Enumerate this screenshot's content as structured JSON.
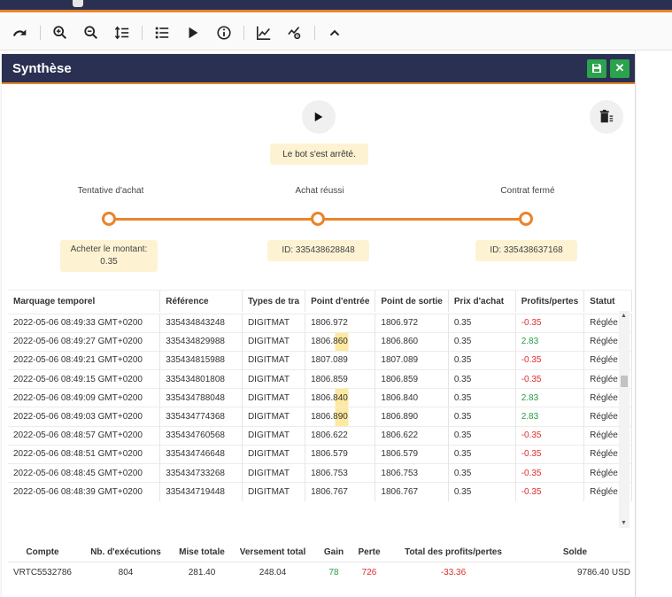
{
  "panel": {
    "title": "Synthèse"
  },
  "status": {
    "message": "Le bot s'est arrêté."
  },
  "steps": [
    {
      "label": "Tentative d'achat",
      "info": "Acheter le montant: 0.35"
    },
    {
      "label": "Achat réussi",
      "info": "ID: 335438628848"
    },
    {
      "label": "Contrat fermé",
      "info": "ID: 335438637168"
    }
  ],
  "table": {
    "headers": [
      "Marquage temporel",
      "Référence",
      "Types de tra",
      "Point d'entrée",
      "Point de sortie",
      "Prix d'achat",
      "Profits/pertes",
      "Statut"
    ],
    "rows": [
      [
        "2022-05-06 08:49:33 GMT+0200",
        "335434843248",
        "DIGITMAT",
        "1806.972",
        "1806.972",
        "0.35",
        "-0.35",
        "Réglée"
      ],
      [
        "2022-05-06 08:49:27 GMT+0200",
        "335434829988",
        "DIGITMAT",
        "1806.860",
        "1806.860",
        "0.35",
        "2.83",
        "Réglée"
      ],
      [
        "2022-05-06 08:49:21 GMT+0200",
        "335434815988",
        "DIGITMAT",
        "1807.089",
        "1807.089",
        "0.35",
        "-0.35",
        "Réglée"
      ],
      [
        "2022-05-06 08:49:15 GMT+0200",
        "335434801808",
        "DIGITMAT",
        "1806.859",
        "1806.859",
        "0.35",
        "-0.35",
        "Réglée"
      ],
      [
        "2022-05-06 08:49:09 GMT+0200",
        "335434788048",
        "DIGITMAT",
        "1806.840",
        "1806.840",
        "0.35",
        "2.83",
        "Réglée"
      ],
      [
        "2022-05-06 08:49:03 GMT+0200",
        "335434774368",
        "DIGITMAT",
        "1806.890",
        "1806.890",
        "0.35",
        "2.83",
        "Réglée"
      ],
      [
        "2022-05-06 08:48:57 GMT+0200",
        "335434760568",
        "DIGITMAT",
        "1806.622",
        "1806.622",
        "0.35",
        "-0.35",
        "Réglée"
      ],
      [
        "2022-05-06 08:48:51 GMT+0200",
        "335434746648",
        "DIGITMAT",
        "1806.579",
        "1806.579",
        "0.35",
        "-0.35",
        "Réglée"
      ],
      [
        "2022-05-06 08:48:45 GMT+0200",
        "335434733268",
        "DIGITMAT",
        "1806.753",
        "1806.753",
        "0.35",
        "-0.35",
        "Réglée"
      ],
      [
        "2022-05-06 08:48:39 GMT+0200",
        "335434719448",
        "DIGITMAT",
        "1806.767",
        "1806.767",
        "0.35",
        "-0.35",
        "Réglée"
      ]
    ]
  },
  "summary": {
    "headers": [
      "Compte",
      "Nb. d'exécutions",
      "Mise totale",
      "Versement total",
      "Gain",
      "Perte",
      "Total des profits/pertes",
      "Solde"
    ],
    "values": [
      "VRTC5532786",
      "804",
      "281.40",
      "248.04",
      "78",
      "726",
      "-33.36",
      "9786.40 USD"
    ]
  },
  "colors": {
    "header_bg": "#2a3052",
    "accent": "#e9842b",
    "positive": "#2a9b45",
    "negative": "#e02c2c",
    "highlight": "#fdf3d3"
  },
  "icons": [
    "redo-icon",
    "zoom-in-icon",
    "zoom-out-icon",
    "sort-icon",
    "list-icon",
    "play-icon",
    "info-icon",
    "chart-icon",
    "chart-settings-icon",
    "collapse-icon",
    "save-icon",
    "close-icon",
    "trash-icon"
  ]
}
